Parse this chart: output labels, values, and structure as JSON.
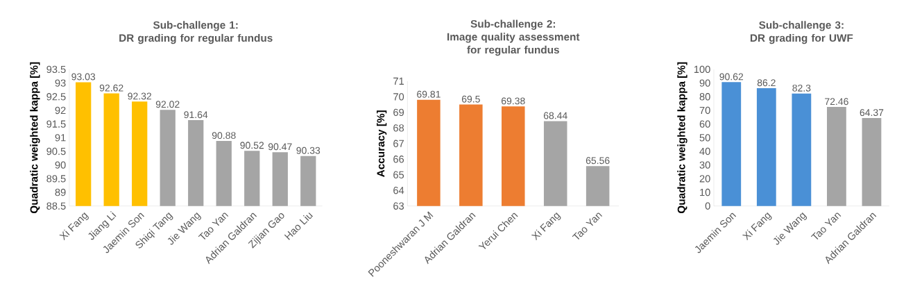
{
  "chart_data": [
    {
      "type": "bar",
      "title": "Sub-challenge 1:",
      "subtitle": "DR grading for regular fundus",
      "ylabel": "Quadratic weighted kappa [%]",
      "categories": [
        "Xi Fang",
        "Jiang Li",
        "Jaemin Son",
        "Shiqi Tang",
        "Jie Wang",
        "Tao Yan",
        "Adrian Galdran",
        "Zijian Gao",
        "Hao Liu"
      ],
      "values": [
        93.03,
        92.62,
        92.32,
        92.02,
        91.64,
        90.88,
        90.52,
        90.47,
        90.33
      ],
      "colors": [
        "#ffc000",
        "#ffc000",
        "#ffc000",
        "#a5a5a5",
        "#a5a5a5",
        "#a5a5a5",
        "#a5a5a5",
        "#a5a5a5",
        "#a5a5a5"
      ],
      "ylim": [
        88.5,
        93.5
      ],
      "yticks": [
        88.5,
        89,
        89.5,
        90,
        90.5,
        91,
        91.5,
        92,
        92.5,
        93,
        93.5
      ],
      "value_labels": [
        "93.03",
        "92.62",
        "92.32",
        "92.02",
        "91.64",
        "90.88",
        "90.52",
        "90.47",
        "90.33"
      ]
    },
    {
      "type": "bar",
      "title": "Sub-challenge 2:",
      "subtitle": "Image quality assessment for regular fundus",
      "ylabel": "Accuracy [%]",
      "categories": [
        "Pooneshwaran J M",
        "Adrian Galdran",
        "Yerui Chen",
        "Xi Fang",
        "Tao Yan"
      ],
      "values": [
        69.81,
        69.5,
        69.38,
        68.44,
        65.56
      ],
      "colors": [
        "#ed7d31",
        "#ed7d31",
        "#ed7d31",
        "#a5a5a5",
        "#a5a5a5"
      ],
      "ylim": [
        63,
        71
      ],
      "yticks": [
        63,
        64,
        65,
        66,
        67,
        68,
        69,
        70,
        71
      ],
      "value_labels": [
        "69.81",
        "69.5",
        "69.38",
        "68.44",
        "65.56"
      ]
    },
    {
      "type": "bar",
      "title": "Sub-challenge 3:",
      "subtitle": "DR grading for UWF",
      "ylabel": "Quadratic weighted kappa [%]",
      "categories": [
        "Jaemin Son",
        "Xi Fang",
        "Jie Wang",
        "Tao Yan",
        "Adrian Galdran"
      ],
      "values": [
        90.62,
        86.2,
        82.3,
        72.46,
        64.37
      ],
      "colors": [
        "#4a90d6",
        "#4a90d6",
        "#4a90d6",
        "#a5a5a5",
        "#a5a5a5"
      ],
      "ylim": [
        0,
        100
      ],
      "yticks": [
        0,
        10,
        20,
        30,
        40,
        50,
        60,
        70,
        80,
        90,
        100
      ],
      "value_labels": [
        "90.62",
        "86.2",
        "82.3",
        "72.46",
        "64.37"
      ]
    }
  ]
}
